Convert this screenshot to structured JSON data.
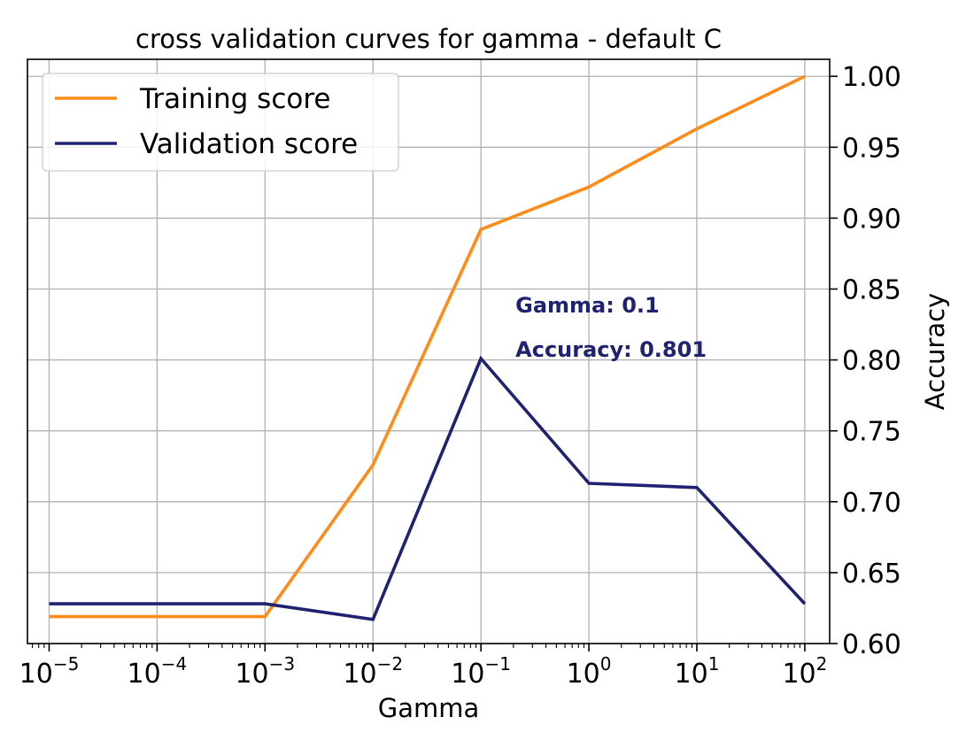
{
  "chart_data": {
    "type": "line",
    "title": "cross validation curves for gamma - default C",
    "xlabel": "Gamma",
    "ylabel": "Accuracy",
    "xscale": "log",
    "x": [
      1e-05,
      0.0001,
      0.001,
      0.01,
      0.1,
      1,
      10,
      100
    ],
    "xlim": [
      6.3e-06,
      170
    ],
    "ylim": [
      0.6,
      1.012
    ],
    "x_ticks": [
      {
        "base": "10",
        "exp": "−5",
        "value": 1e-05
      },
      {
        "base": "10",
        "exp": "−4",
        "value": 0.0001
      },
      {
        "base": "10",
        "exp": "−3",
        "value": 0.001
      },
      {
        "base": "10",
        "exp": "−2",
        "value": 0.01
      },
      {
        "base": "10",
        "exp": "−1",
        "value": 0.1
      },
      {
        "base": "10",
        "exp": "0",
        "value": 1
      },
      {
        "base": "10",
        "exp": "1",
        "value": 10
      },
      {
        "base": "10",
        "exp": "2",
        "value": 100
      }
    ],
    "y_ticks": [
      "0.60",
      "0.65",
      "0.70",
      "0.75",
      "0.80",
      "0.85",
      "0.90",
      "0.95",
      "1.00"
    ],
    "y_axis_side": "right",
    "grid": true,
    "legend_position": "top-left",
    "series": [
      {
        "name": "Training score",
        "color": "#ff8c1a",
        "values": [
          0.619,
          0.619,
          0.619,
          0.726,
          0.892,
          0.922,
          0.963,
          1.0
        ]
      },
      {
        "name": "Validation score",
        "color": "#1f2270",
        "values": [
          0.628,
          0.628,
          0.628,
          0.617,
          0.801,
          0.713,
          0.71,
          0.628
        ]
      }
    ],
    "annotation": {
      "lines": [
        "Gamma: 0.1",
        "Accuracy: 0.801"
      ],
      "color": "#1f2270",
      "anchor_x": 0.1,
      "anchor_y": 0.801
    }
  }
}
